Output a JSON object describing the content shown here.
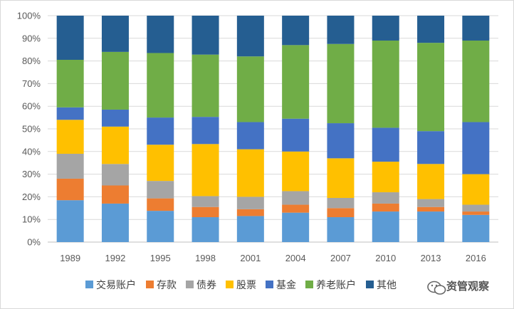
{
  "chart_data": {
    "type": "bar",
    "stacked": "percent",
    "categories": [
      "1989",
      "1992",
      "1995",
      "1998",
      "2001",
      "2004",
      "2007",
      "2010",
      "2013",
      "2016"
    ],
    "series": [
      {
        "name": "交易账户",
        "color": "#5b9bd5",
        "values": [
          18.5,
          17,
          13.8,
          11,
          11.5,
          13,
          11,
          13.5,
          13.5,
          12
        ]
      },
      {
        "name": "存款",
        "color": "#ed7d31",
        "values": [
          9.5,
          8,
          5.5,
          4.5,
          3,
          3.5,
          4,
          3.5,
          2,
          1.5
        ]
      },
      {
        "name": "债券",
        "color": "#a5a5a5",
        "values": [
          11,
          9.5,
          7.7,
          4.8,
          5.5,
          6,
          4.5,
          5,
          3.5,
          3
        ]
      },
      {
        "name": "股票",
        "color": "#ffc000",
        "values": [
          15,
          16.5,
          16,
          23,
          21,
          17.5,
          17.5,
          13.5,
          15.5,
          13.5
        ]
      },
      {
        "name": "基金",
        "color": "#4472c4",
        "values": [
          5.5,
          7.5,
          12,
          12,
          12,
          14.5,
          15.5,
          15,
          14.5,
          23
        ]
      },
      {
        "name": "养老账户",
        "color": "#70ad47",
        "values": [
          21,
          25.5,
          28.5,
          27.5,
          29,
          32.5,
          35,
          38.5,
          39,
          36
        ]
      },
      {
        "name": "其他",
        "color": "#255e91",
        "values": [
          19.5,
          16,
          16.5,
          17.2,
          18,
          13,
          12.5,
          11,
          12,
          11
        ]
      }
    ],
    "ylim": [
      0,
      100
    ],
    "yticks": [
      "0%",
      "10%",
      "20%",
      "30%",
      "40%",
      "50%",
      "60%",
      "70%",
      "80%",
      "90%",
      "100%"
    ],
    "grid": true,
    "legend": "bottom"
  },
  "watermark": {
    "text": "资管观察"
  }
}
